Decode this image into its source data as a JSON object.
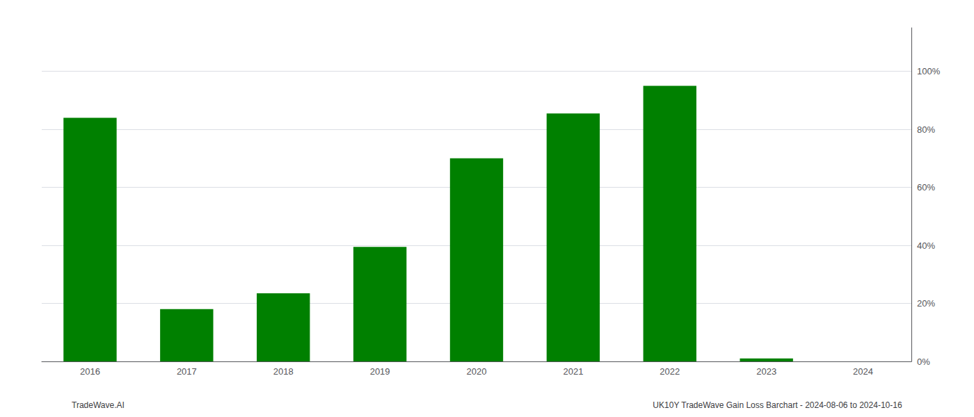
{
  "chart_data": {
    "type": "bar",
    "categories": [
      "2016",
      "2017",
      "2018",
      "2019",
      "2020",
      "2021",
      "2022",
      "2023",
      "2024"
    ],
    "values": [
      0.84,
      0.18,
      0.235,
      0.395,
      0.7,
      0.855,
      0.95,
      0.01,
      0.0
    ],
    "color": "#008000",
    "ylim": [
      0,
      1.15
    ],
    "yticks": [
      {
        "value": 0.0,
        "label": "0%"
      },
      {
        "value": 0.2,
        "label": "20%"
      },
      {
        "value": 0.4,
        "label": "40%"
      },
      {
        "value": 0.6,
        "label": "60%"
      },
      {
        "value": 0.8,
        "label": "80%"
      },
      {
        "value": 1.0,
        "label": "100%"
      }
    ],
    "grid": true,
    "annotations": [
      "TradeWave.AI",
      "UK10Y TradeWave Gain Loss Barchart - 2024-08-06 to 2024-10-16"
    ]
  }
}
